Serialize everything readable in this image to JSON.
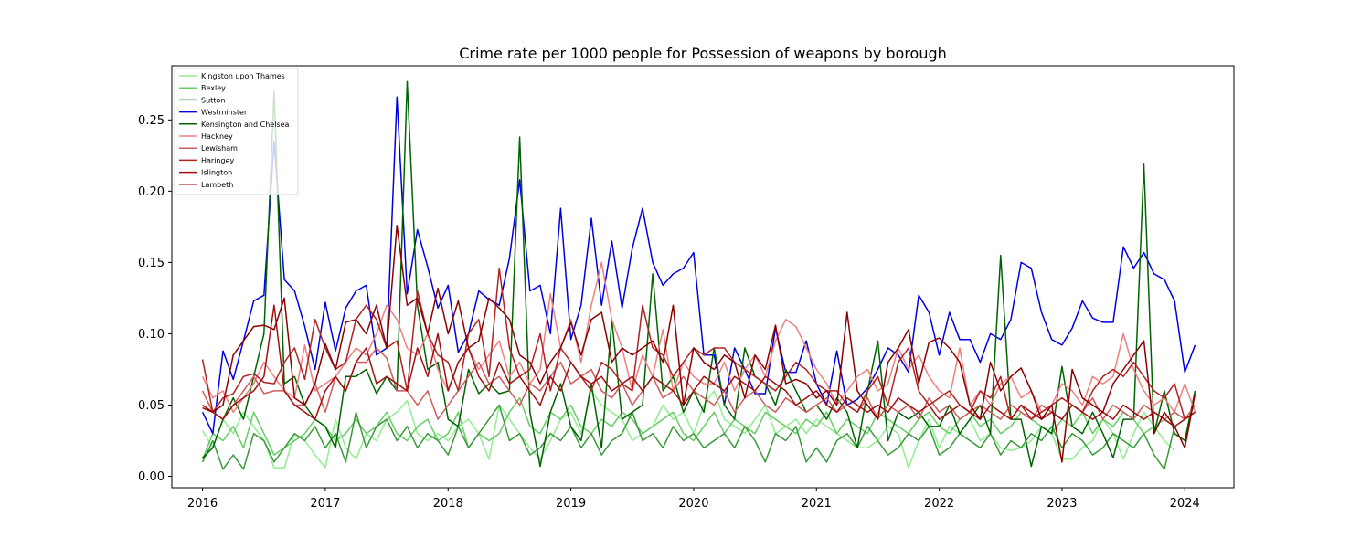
{
  "chart_data": {
    "type": "line",
    "title": "Crime rate per 1000 people for Possession of weapons by borough",
    "xlabel": "",
    "ylabel": "",
    "xlim": [
      2015.75,
      2024.4
    ],
    "ylim": [
      -0.008,
      0.288
    ],
    "x_ticks": [
      2016,
      2017,
      2018,
      2019,
      2020,
      2021,
      2022,
      2023,
      2024
    ],
    "y_ticks": [
      0.0,
      0.05,
      0.1,
      0.15,
      0.2,
      0.25
    ],
    "y_tick_labels": [
      "0.00",
      "0.05",
      "0.10",
      "0.15",
      "0.20",
      "0.25"
    ],
    "x_start": "2016-01",
    "x_step": "month",
    "grid": false,
    "legend_position": "upper-left",
    "series": [
      {
        "name": "Kingston upon Thames",
        "color": "#90ee90",
        "values": [
          0.032,
          0.02,
          0.04,
          0.03,
          0.045,
          0.035,
          0.025,
          0.006,
          0.006,
          0.03,
          0.025,
          0.015,
          0.006,
          0.04,
          0.02,
          0.012,
          0.03,
          0.025,
          0.04,
          0.045,
          0.053,
          0.03,
          0.025,
          0.03,
          0.025,
          0.035,
          0.04,
          0.03,
          0.012,
          0.05,
          0.04,
          0.03,
          0.02,
          0.012,
          0.025,
          0.04,
          0.045,
          0.03,
          0.06,
          0.05,
          0.045,
          0.04,
          0.025,
          0.03,
          0.035,
          0.05,
          0.04,
          0.045,
          0.03,
          0.05,
          0.06,
          0.04,
          0.035,
          0.03,
          0.04,
          0.05,
          0.03,
          0.035,
          0.04,
          0.03,
          0.04,
          0.035,
          0.03,
          0.025,
          0.02,
          0.02,
          0.025,
          0.035,
          0.03,
          0.006,
          0.025,
          0.04,
          0.02,
          0.035,
          0.03,
          0.04,
          0.025,
          0.03,
          0.02,
          0.018,
          0.02,
          0.025,
          0.035,
          0.03,
          0.012,
          0.012,
          0.02,
          0.025,
          0.04,
          0.03,
          0.012,
          0.03,
          0.045,
          0.035,
          0.025,
          0.018
        ]
      },
      {
        "name": "Bexley",
        "color": "#66cd66",
        "values": [
          0.012,
          0.03,
          0.025,
          0.035,
          0.02,
          0.045,
          0.03,
          0.015,
          0.02,
          0.025,
          0.03,
          0.04,
          0.035,
          0.025,
          0.03,
          0.04,
          0.03,
          0.035,
          0.045,
          0.03,
          0.025,
          0.035,
          0.04,
          0.025,
          0.03,
          0.045,
          0.02,
          0.03,
          0.025,
          0.03,
          0.045,
          0.055,
          0.035,
          0.03,
          0.045,
          0.04,
          0.05,
          0.035,
          0.03,
          0.04,
          0.035,
          0.045,
          0.04,
          0.03,
          0.035,
          0.04,
          0.045,
          0.03,
          0.025,
          0.035,
          0.045,
          0.03,
          0.04,
          0.035,
          0.03,
          0.045,
          0.04,
          0.035,
          0.03,
          0.04,
          0.035,
          0.045,
          0.03,
          0.04,
          0.035,
          0.03,
          0.045,
          0.04,
          0.035,
          0.03,
          0.04,
          0.045,
          0.035,
          0.03,
          0.04,
          0.045,
          0.035,
          0.04,
          0.03,
          0.035,
          0.045,
          0.04,
          0.035,
          0.03,
          0.04,
          0.035,
          0.045,
          0.03,
          0.04,
          0.035,
          0.045,
          0.04,
          0.03,
          0.035,
          0.04,
          0.035
        ]
      },
      {
        "name": "Sutton",
        "color": "#3a9a3a",
        "values": [
          0.01,
          0.025,
          0.005,
          0.015,
          0.005,
          0.03,
          0.025,
          0.01,
          0.02,
          0.03,
          0.025,
          0.035,
          0.02,
          0.03,
          0.01,
          0.045,
          0.02,
          0.035,
          0.04,
          0.025,
          0.035,
          0.02,
          0.03,
          0.025,
          0.015,
          0.035,
          0.02,
          0.03,
          0.04,
          0.05,
          0.025,
          0.03,
          0.015,
          0.02,
          0.03,
          0.025,
          0.035,
          0.02,
          0.03,
          0.015,
          0.025,
          0.03,
          0.045,
          0.025,
          0.03,
          0.02,
          0.035,
          0.025,
          0.03,
          0.02,
          0.025,
          0.03,
          0.02,
          0.035,
          0.025,
          0.01,
          0.03,
          0.025,
          0.035,
          0.01,
          0.02,
          0.01,
          0.025,
          0.03,
          0.02,
          0.035,
          0.025,
          0.015,
          0.02,
          0.03,
          0.025,
          0.035,
          0.015,
          0.02,
          0.03,
          0.025,
          0.02,
          0.03,
          0.015,
          0.025,
          0.02,
          0.03,
          0.025,
          0.035,
          0.02,
          0.03,
          0.025,
          0.015,
          0.02,
          0.03,
          0.025,
          0.02,
          0.03,
          0.015,
          0.005,
          0.035
        ]
      },
      {
        "name": "Westminster",
        "color": "#0000e0",
        "values": [
          0.045,
          0.03,
          0.088,
          0.068,
          0.095,
          0.123,
          0.127,
          0.235,
          0.138,
          0.13,
          0.105,
          0.075,
          0.122,
          0.088,
          0.118,
          0.13,
          0.134,
          0.085,
          0.09,
          0.266,
          0.128,
          0.173,
          0.147,
          0.118,
          0.134,
          0.087,
          0.1,
          0.13,
          0.124,
          0.12,
          0.153,
          0.208,
          0.13,
          0.134,
          0.1,
          0.188,
          0.096,
          0.12,
          0.181,
          0.12,
          0.165,
          0.118,
          0.16,
          0.188,
          0.15,
          0.134,
          0.142,
          0.146,
          0.157,
          0.085,
          0.085,
          0.05,
          0.09,
          0.075,
          0.058,
          0.058,
          0.104,
          0.073,
          0.073,
          0.095,
          0.065,
          0.05,
          0.088,
          0.05,
          0.054,
          0.062,
          0.075,
          0.09,
          0.085,
          0.073,
          0.127,
          0.115,
          0.085,
          0.115,
          0.096,
          0.096,
          0.08,
          0.1,
          0.096,
          0.11,
          0.15,
          0.146,
          0.115,
          0.096,
          0.092,
          0.104,
          0.123,
          0.111,
          0.108,
          0.108,
          0.161,
          0.146,
          0.157,
          0.142,
          0.138,
          0.123,
          0.073,
          0.092
        ]
      },
      {
        "name": "Kensington and Chelsea",
        "color": "#006400",
        "values": [
          0.013,
          0.02,
          0.04,
          0.055,
          0.04,
          0.07,
          0.1,
          0.27,
          0.065,
          0.07,
          0.05,
          0.04,
          0.035,
          0.02,
          0.07,
          0.07,
          0.075,
          0.058,
          0.07,
          0.06,
          0.277,
          0.12,
          0.075,
          0.08,
          0.04,
          0.035,
          0.075,
          0.058,
          0.065,
          0.058,
          0.06,
          0.238,
          0.045,
          0.007,
          0.045,
          0.065,
          0.035,
          0.025,
          0.065,
          0.02,
          0.11,
          0.04,
          0.045,
          0.05,
          0.142,
          0.06,
          0.07,
          0.045,
          0.06,
          0.045,
          0.09,
          0.05,
          0.04,
          0.09,
          0.07,
          0.065,
          0.05,
          0.075,
          0.06,
          0.045,
          0.05,
          0.04,
          0.055,
          0.045,
          0.02,
          0.06,
          0.095,
          0.025,
          0.045,
          0.04,
          0.045,
          0.035,
          0.035,
          0.05,
          0.03,
          0.04,
          0.05,
          0.03,
          0.155,
          0.04,
          0.04,
          0.007,
          0.035,
          0.03,
          0.077,
          0.035,
          0.03,
          0.045,
          0.03,
          0.013,
          0.04,
          0.04,
          0.219,
          0.03,
          0.06,
          0.03,
          0.025,
          0.06
        ]
      },
      {
        "name": "Hackney",
        "color": "#f08080",
        "values": [
          0.07,
          0.055,
          0.06,
          0.045,
          0.055,
          0.065,
          0.08,
          0.07,
          0.06,
          0.055,
          0.092,
          0.06,
          0.065,
          0.07,
          0.08,
          0.09,
          0.085,
          0.1,
          0.12,
          0.11,
          0.09,
          0.085,
          0.1,
          0.075,
          0.06,
          0.08,
          0.09,
          0.075,
          0.085,
          0.095,
          0.07,
          0.08,
          0.065,
          0.075,
          0.128,
          0.09,
          0.11,
          0.08,
          0.12,
          0.15,
          0.11,
          0.09,
          0.06,
          0.085,
          0.07,
          0.103,
          0.06,
          0.08,
          0.07,
          0.065,
          0.065,
          0.08,
          0.06,
          0.075,
          0.085,
          0.07,
          0.095,
          0.11,
          0.105,
          0.09,
          0.075,
          0.065,
          0.05,
          0.06,
          0.07,
          0.075,
          0.06,
          0.065,
          0.09,
          0.075,
          0.085,
          0.07,
          0.06,
          0.055,
          0.09,
          0.05,
          0.06,
          0.05,
          0.065,
          0.07,
          0.055,
          0.06,
          0.045,
          0.05,
          0.065,
          0.06,
          0.05,
          0.07,
          0.065,
          0.07,
          0.1,
          0.075,
          0.06,
          0.05,
          0.055,
          0.045,
          0.065,
          0.045
        ]
      },
      {
        "name": "Lewisham",
        "color": "#cd5c5c",
        "values": [
          0.06,
          0.045,
          0.04,
          0.05,
          0.06,
          0.07,
          0.058,
          0.06,
          0.06,
          0.05,
          0.05,
          0.065,
          0.045,
          0.07,
          0.06,
          0.08,
          0.08,
          0.09,
          0.083,
          0.06,
          0.06,
          0.05,
          0.06,
          0.04,
          0.05,
          0.06,
          0.07,
          0.08,
          0.065,
          0.07,
          0.06,
          0.05,
          0.065,
          0.06,
          0.07,
          0.08,
          0.065,
          0.07,
          0.075,
          0.06,
          0.055,
          0.065,
          0.05,
          0.06,
          0.07,
          0.055,
          0.06,
          0.07,
          0.06,
          0.055,
          0.05,
          0.06,
          0.045,
          0.055,
          0.06,
          0.05,
          0.045,
          0.055,
          0.05,
          0.045,
          0.05,
          0.055,
          0.045,
          0.05,
          0.045,
          0.055,
          0.04,
          0.05,
          0.045,
          0.05,
          0.04,
          0.055,
          0.045,
          0.05,
          0.04,
          0.045,
          0.05,
          0.045,
          0.04,
          0.05,
          0.045,
          0.04,
          0.05,
          0.045,
          0.04,
          0.05,
          0.045,
          0.055,
          0.04,
          0.05,
          0.045,
          0.04,
          0.05,
          0.045,
          0.04,
          0.045,
          0.04,
          0.05
        ]
      },
      {
        "name": "Haringey",
        "color": "#b22222",
        "values": [
          0.082,
          0.045,
          0.055,
          0.058,
          0.07,
          0.072,
          0.066,
          0.065,
          0.08,
          0.09,
          0.068,
          0.11,
          0.09,
          0.075,
          0.08,
          0.11,
          0.12,
          0.11,
          0.09,
          0.095,
          0.06,
          0.13,
          0.1,
          0.085,
          0.08,
          0.06,
          0.1,
          0.11,
          0.07,
          0.146,
          0.09,
          0.07,
          0.075,
          0.1,
          0.06,
          0.09,
          0.08,
          0.07,
          0.06,
          0.08,
          0.075,
          0.065,
          0.06,
          0.12,
          0.09,
          0.085,
          0.07,
          0.08,
          0.09,
          0.085,
          0.09,
          0.09,
          0.08,
          0.075,
          0.07,
          0.065,
          0.06,
          0.07,
          0.08,
          0.075,
          0.065,
          0.06,
          0.06,
          0.05,
          0.045,
          0.06,
          0.07,
          0.05,
          0.08,
          0.09,
          0.06,
          0.05,
          0.055,
          0.06,
          0.05,
          0.045,
          0.06,
          0.055,
          0.07,
          0.04,
          0.05,
          0.04,
          0.045,
          0.05,
          0.055,
          0.05,
          0.045,
          0.06,
          0.07,
          0.075,
          0.07,
          0.08,
          0.07,
          0.06,
          0.055,
          0.065,
          0.04,
          0.045
        ]
      },
      {
        "name": "Islington",
        "color": "#a01010",
        "values": [
          0.05,
          0.045,
          0.04,
          0.05,
          0.055,
          0.06,
          0.07,
          0.12,
          0.06,
          0.05,
          0.045,
          0.04,
          0.06,
          0.07,
          0.06,
          0.08,
          0.09,
          0.065,
          0.07,
          0.065,
          0.06,
          0.09,
          0.07,
          0.1,
          0.06,
          0.08,
          0.09,
          0.07,
          0.06,
          0.08,
          0.065,
          0.07,
          0.06,
          0.05,
          0.07,
          0.06,
          0.08,
          0.07,
          0.065,
          0.07,
          0.06,
          0.065,
          0.07,
          0.06,
          0.07,
          0.065,
          0.06,
          0.05,
          0.06,
          0.07,
          0.065,
          0.06,
          0.07,
          0.065,
          0.06,
          0.07,
          0.065,
          0.06,
          0.05,
          0.055,
          0.06,
          0.05,
          0.045,
          0.055,
          0.05,
          0.045,
          0.05,
          0.045,
          0.055,
          0.05,
          0.045,
          0.05,
          0.04,
          0.045,
          0.05,
          0.045,
          0.04,
          0.05,
          0.045,
          0.04,
          0.05,
          0.045,
          0.04,
          0.045,
          0.04,
          0.05,
          0.045,
          0.04,
          0.045,
          0.04,
          0.05,
          0.045,
          0.04,
          0.045,
          0.04,
          0.035,
          0.04,
          0.045
        ]
      },
      {
        "name": "Lambeth",
        "color": "#8b0000",
        "values": [
          0.048,
          0.045,
          0.05,
          0.085,
          0.095,
          0.105,
          0.106,
          0.103,
          0.125,
          0.055,
          0.05,
          0.065,
          0.093,
          0.075,
          0.108,
          0.11,
          0.1,
          0.12,
          0.09,
          0.176,
          0.12,
          0.125,
          0.1,
          0.132,
          0.1,
          0.123,
          0.09,
          0.095,
          0.125,
          0.118,
          0.11,
          0.085,
          0.08,
          0.065,
          0.08,
          0.09,
          0.108,
          0.085,
          0.11,
          0.115,
          0.08,
          0.09,
          0.085,
          0.09,
          0.095,
          0.08,
          0.12,
          0.05,
          0.09,
          0.08,
          0.075,
          0.085,
          0.08,
          0.055,
          0.085,
          0.075,
          0.106,
          0.065,
          0.068,
          0.065,
          0.055,
          0.06,
          0.05,
          0.115,
          0.06,
          0.05,
          0.04,
          0.08,
          0.09,
          0.103,
          0.065,
          0.094,
          0.097,
          0.09,
          0.08,
          0.05,
          0.04,
          0.08,
          0.06,
          0.07,
          0.076,
          0.06,
          0.04,
          0.05,
          0.01,
          0.075,
          0.055,
          0.05,
          0.045,
          0.065,
          0.075,
          0.085,
          0.095,
          0.03,
          0.045,
          0.035,
          0.02,
          0.058
        ]
      }
    ]
  }
}
